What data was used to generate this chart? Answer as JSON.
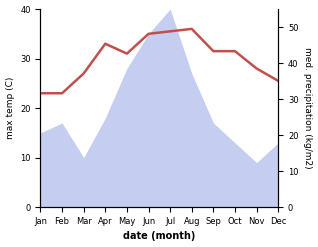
{
  "months": [
    "Jan",
    "Feb",
    "Mar",
    "Apr",
    "May",
    "Jun",
    "Jul",
    "Aug",
    "Sep",
    "Oct",
    "Nov",
    "Dec"
  ],
  "month_nums": [
    1,
    2,
    3,
    4,
    5,
    6,
    7,
    8,
    9,
    10,
    11,
    12
  ],
  "temp": [
    23,
    23,
    27,
    33,
    31,
    35,
    35.5,
    36,
    31.5,
    31.5,
    28,
    25.5
  ],
  "precip_left": [
    15,
    17,
    10,
    18,
    28,
    35,
    40,
    27,
    17,
    13,
    9,
    13
  ],
  "temp_color": "#c0504d",
  "precip_fill_color": "#c5cef0",
  "temp_ylim": [
    0,
    40
  ],
  "precip_ylim": [
    0,
    55
  ],
  "left_yticks": [
    0,
    10,
    20,
    30,
    40
  ],
  "right_yticks": [
    0,
    10,
    20,
    30,
    40,
    50
  ],
  "temp_ylabel": "max temp (C)",
  "precip_ylabel": "med. precipitation (kg/m2)",
  "xlabel": "date (month)",
  "bg_color": "#ffffff",
  "spine_color": "#cccccc"
}
